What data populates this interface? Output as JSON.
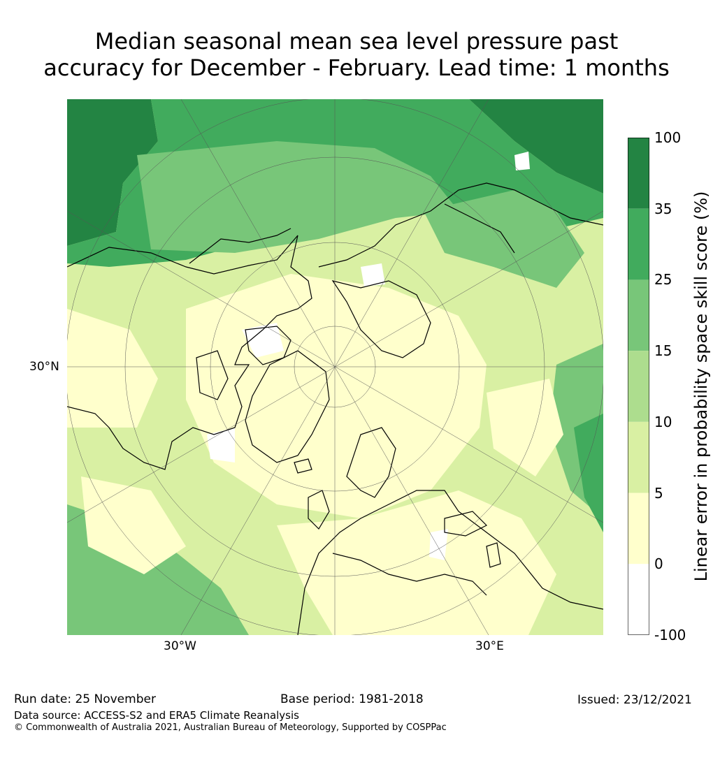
{
  "title": {
    "line1": "Median seasonal mean sea level pressure past",
    "line2": "accuracy for December - February. Lead time: 1 months"
  },
  "map": {
    "projection": "north-polar-stereographic",
    "tick_labels": {
      "lat_30n": "30°N",
      "lon_30w": "30°W",
      "lon_30e": "30°E"
    },
    "colors": {
      "land_outline": "#000000",
      "graticule": "#555555"
    }
  },
  "colorbar": {
    "title": "Linear error in probability space skill score (%)",
    "levels": [
      "100",
      "35",
      "25",
      "15",
      "10",
      "5",
      "0",
      "-100"
    ],
    "bins": [
      {
        "range": "35 to 100",
        "color": "#238443"
      },
      {
        "range": "25 to 35",
        "color": "#41ab5d"
      },
      {
        "range": "15 to 25",
        "color": "#78c679"
      },
      {
        "range": "10 to 15",
        "color": "#addd8e"
      },
      {
        "range": "5 to 10",
        "color": "#d9f0a3"
      },
      {
        "range": "0 to 5",
        "color": "#ffffcc"
      },
      {
        "range": "-100 to 0",
        "color": "#ffffff"
      }
    ]
  },
  "footer": {
    "run_date": "Run date: 25 November",
    "base_period": "Base period: 1981-2018",
    "issued": "Issued: 23/12/2021",
    "data_source": "Data source: ACCESS-S2 and ERA5 Climate Reanalysis",
    "copyright": "© Commonwealth of Australia 2021, Australian Bureau of Meteorology, Supported by COSPPac"
  }
}
